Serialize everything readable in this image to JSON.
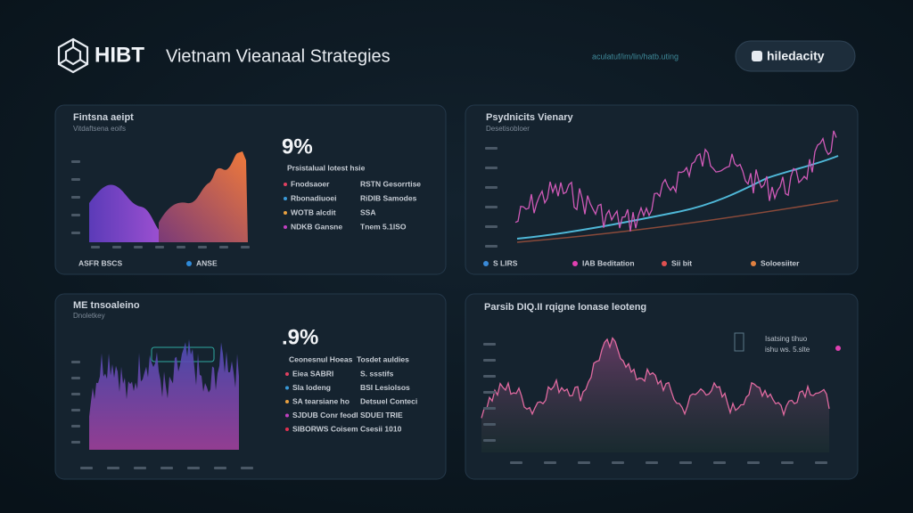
{
  "header": {
    "logo": "HIBT",
    "title": "Vietnam Vieanaal Strategies",
    "url": "aculatuf/im/lin/hatb.uting",
    "button": "hiledacity"
  },
  "panels": [
    {
      "title": "Fintsna aeipt",
      "subtitle": "Vitdaftsena eoifs",
      "stat": "9%",
      "list_title": "Prsistalual lotest hsie",
      "rows": [
        [
          "Fnodsaoer",
          "RSTN Gesorrtise"
        ],
        [
          "Rbonadiuoei",
          "RiDIB Samodes"
        ],
        [
          "WOTB alcdit",
          "SSA"
        ],
        [
          "NDKB Gansne",
          "Tnem 5.1ISO"
        ]
      ],
      "legend": [
        "ASFR BSCS",
        "ANSE"
      ]
    },
    {
      "title": "Psydnicits Vienary",
      "subtitle": "Desetisobloer",
      "legend": [
        "S LIRS",
        "IAB Beditation",
        "Sii bit",
        "Soloesiiter"
      ]
    },
    {
      "title": "ME tnsoaleino",
      "subtitle": "Dnoletkey",
      "stat": ".9%",
      "list_title": "Ceonesnul Hoeas",
      "list_title2": "Tosdet auldies",
      "rows": [
        [
          "Eiea SABRI",
          "S. ssstifs"
        ],
        [
          "Sla lodeng",
          "BSI Lesiolsos"
        ],
        [
          "SA tearsiane ho",
          "Detsuel Conteci"
        ],
        [
          "SJDUB Conr feodl",
          "SDUEI TRIE"
        ],
        [
          "SIBORWS Coisem",
          "Csesii 1010"
        ]
      ]
    },
    {
      "title": "Parsib DIQ.II rqigne lonase leoteng",
      "inset": [
        "Isatsing tihuo",
        "ishu ws. 5.slte"
      ]
    }
  ]
}
